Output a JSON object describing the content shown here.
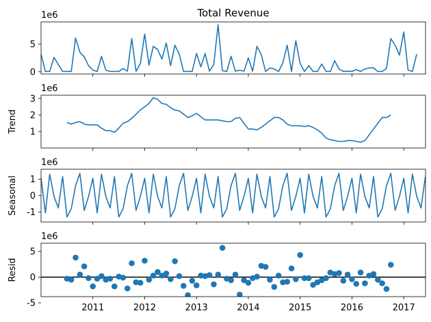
{
  "chart_data": [
    {
      "type": "line",
      "title": "Total Revenue",
      "ylabel": "",
      "scale_label": "1e6",
      "xlim": [
        2010.0,
        2017.42
      ],
      "ylim": [
        -0.4,
        9.0
      ],
      "yticks": [
        0,
        5
      ],
      "x_start": 2010.0,
      "x_step": 0.0833333,
      "values": [
        3.2,
        0.05,
        0.05,
        2.6,
        1.3,
        0.05,
        0.05,
        0.05,
        6.1,
        3.5,
        2.7,
        1.1,
        0.3,
        0.05,
        2.8,
        0.3,
        0.05,
        0.05,
        0.05,
        0.6,
        0.1,
        6.0,
        0.1,
        1.5,
        6.8,
        1.2,
        4.6,
        4.0,
        2.3,
        5.2,
        1.1,
        4.8,
        3.2,
        0.05,
        0.05,
        0.05,
        3.3,
        0.9,
        3.3,
        0.1,
        1.3,
        8.5,
        0.2,
        0.05,
        2.8,
        0.1,
        0.3,
        0.1,
        2.5,
        0.1,
        4.6,
        3.1,
        0.05,
        0.7,
        0.5,
        0.05,
        1.6,
        4.8,
        0.05,
        5.6,
        1.5,
        0.05,
        1.1,
        0.05,
        0.05,
        1.4,
        0.05,
        0.05,
        2.0,
        0.5,
        0.05,
        0.1,
        0.05,
        0.4,
        0.05,
        0.5,
        0.7,
        0.7,
        0.05,
        0.05,
        0.6,
        6.0,
        4.8,
        3.0,
        7.2,
        0.3,
        0.05,
        3.2
      ]
    },
    {
      "type": "line",
      "title": "",
      "ylabel": "Trend",
      "scale_label": "1e6",
      "xlim": [
        2010.0,
        2017.42
      ],
      "ylim": [
        0.0,
        3.2
      ],
      "yticks": [
        1,
        2,
        3
      ],
      "x_start": 2010.5,
      "x_step": 0.0833333,
      "values": [
        1.55,
        1.45,
        1.55,
        1.6,
        1.45,
        1.4,
        1.4,
        1.4,
        1.2,
        1.05,
        1.05,
        0.95,
        1.2,
        1.5,
        1.6,
        1.8,
        2.05,
        2.3,
        2.5,
        2.7,
        3.05,
        2.95,
        2.7,
        2.65,
        2.45,
        2.3,
        2.25,
        2.05,
        1.85,
        1.95,
        2.1,
        1.9,
        1.7,
        1.7,
        1.7,
        1.7,
        1.65,
        1.6,
        1.6,
        1.8,
        1.85,
        1.5,
        1.15,
        1.15,
        1.1,
        1.25,
        1.45,
        1.65,
        1.85,
        1.85,
        1.7,
        1.45,
        1.35,
        1.35,
        1.35,
        1.3,
        1.35,
        1.25,
        1.1,
        0.9,
        0.6,
        0.5,
        0.45,
        0.4,
        0.4,
        0.45,
        0.45,
        0.4,
        0.35,
        0.45,
        0.8,
        1.15,
        1.5,
        1.85,
        1.85,
        2.0
      ]
    },
    {
      "type": "line",
      "title": "",
      "ylabel": "Seasonal",
      "scale_label": "1e6",
      "xlim": [
        2010.0,
        2017.42
      ],
      "ylim": [
        -1.6,
        1.6
      ],
      "yticks": [
        -1,
        0,
        1
      ],
      "x_start": 2010.0,
      "x_step": 0.0833333,
      "season_pattern": [
        1.05,
        -1.05,
        1.3,
        -0.05,
        -0.75,
        1.15,
        -1.3,
        -0.8,
        0.6,
        1.35,
        -0.9,
        -0.05
      ],
      "n_points": 90
    },
    {
      "type": "scatter",
      "title": "",
      "ylabel": "Resid",
      "scale_label": "1e6",
      "xlim": [
        2010.0,
        2017.42
      ],
      "ylim": [
        -3.8,
        6.6
      ],
      "yticks": [
        -5,
        0,
        5
      ],
      "x_start": 2010.5,
      "x_step": 0.0833333,
      "values": [
        -0.3,
        -0.5,
        3.8,
        0.5,
        2.1,
        -0.2,
        -1.8,
        -0.3,
        0.2,
        -0.5,
        -0.3,
        -1.8,
        0.1,
        -0.1,
        -2.2,
        2.7,
        -1.0,
        -1.1,
        3.2,
        -0.5,
        0.3,
        1.0,
        0.3,
        0.7,
        -0.4,
        3.1,
        0.2,
        -1.7,
        -3.5,
        -0.7,
        -1.6,
        0.3,
        0.2,
        0.4,
        -1.4,
        0.5,
        5.7,
        -0.3,
        -0.6,
        0.5,
        -3.4,
        -0.6,
        -1.1,
        -0.2,
        0.1,
        2.2,
        2.0,
        -0.5,
        -1.9,
        0.3,
        -1.0,
        -0.9,
        1.7,
        -0.4,
        4.3,
        -0.2,
        -0.2,
        -1.5,
        -1.0,
        -0.6,
        -0.2,
        0.9,
        0.6,
        0.8,
        -0.7,
        0.5,
        -0.4,
        -1.3,
        0.9,
        -1.2,
        0.3,
        0.6,
        -0.5,
        -1.2,
        -2.3,
        2.4
      ]
    }
  ],
  "x_axis": {
    "tick_values": [
      2011,
      2012,
      2013,
      2014,
      2015,
      2016,
      2017
    ],
    "tick_labels": [
      "2011",
      "2012",
      "2013",
      "2014",
      "2015",
      "2016",
      "2017"
    ]
  },
  "colors": {
    "series": "#1f77b4",
    "axis": "#000000",
    "zero_line": "#000000"
  }
}
